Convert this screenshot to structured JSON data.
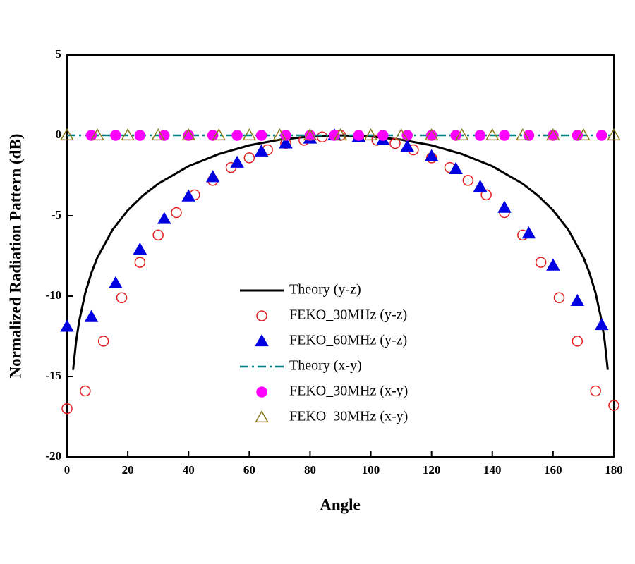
{
  "chart_data": {
    "type": "line",
    "xlabel": "Angle",
    "ylabel": "Normalized Radiation Pattern (dB)",
    "xlim": [
      0,
      180
    ],
    "ylim": [
      -20,
      5
    ],
    "xticks": [
      0,
      20,
      40,
      60,
      80,
      100,
      120,
      140,
      160,
      180
    ],
    "yticks": [
      -20,
      -15,
      -10,
      -5,
      0,
      5
    ],
    "legend": "center",
    "series": [
      {
        "name": "Theory (y-z)",
        "color": "#000000",
        "line": "solid",
        "marker": "none",
        "x": [
          2,
          3,
          4,
          6,
          8,
          10,
          15,
          20,
          25,
          30,
          40,
          50,
          60,
          70,
          80,
          90,
          100,
          110,
          120,
          130,
          140,
          150,
          155,
          160,
          165,
          170,
          172,
          174,
          176,
          177,
          178
        ],
        "values": [
          -14.59,
          -12.81,
          -11.56,
          -9.81,
          -8.57,
          -7.6,
          -5.87,
          -4.66,
          -3.74,
          -3.01,
          -1.92,
          -1.16,
          -0.62,
          -0.27,
          -0.07,
          0,
          -0.07,
          -0.27,
          -0.62,
          -1.16,
          -1.92,
          -3.01,
          -3.74,
          -4.66,
          -5.87,
          -7.6,
          -8.57,
          -9.81,
          -11.56,
          -12.81,
          -14.59
        ]
      },
      {
        "name": "FEKO_30MHz (y-z)",
        "color": "#e02020",
        "line": "none",
        "marker": "circle-open",
        "x": [
          0,
          6,
          12,
          18,
          24,
          30,
          36,
          42,
          48,
          54,
          60,
          66,
          72,
          78,
          84,
          90,
          96,
          102,
          108,
          114,
          120,
          126,
          132,
          138,
          144,
          150,
          156,
          162,
          168,
          174,
          180
        ],
        "values": [
          -17,
          -15.9,
          -12.8,
          -10.1,
          -7.9,
          -6.2,
          -4.8,
          -3.7,
          -2.8,
          -2.0,
          -1.4,
          -0.9,
          -0.5,
          -0.3,
          -0.1,
          0,
          -0.1,
          -0.3,
          -0.5,
          -0.9,
          -1.4,
          -2.0,
          -2.8,
          -3.7,
          -4.8,
          -6.2,
          -7.9,
          -10.1,
          -12.8,
          -15.9,
          -16.8
        ]
      },
      {
        "name": "FEKO_60MHz (y-z)",
        "color": "#0000e0",
        "line": "none",
        "marker": "triangle-filled",
        "x": [
          0,
          8,
          16,
          24,
          32,
          40,
          48,
          56,
          64,
          72,
          80,
          88,
          96,
          104,
          112,
          120,
          128,
          136,
          144,
          152,
          160,
          168,
          176
        ],
        "values": [
          -11.9,
          -11.3,
          -9.2,
          -7.1,
          -5.2,
          -3.8,
          -2.6,
          -1.7,
          -1.0,
          -0.5,
          -0.2,
          0,
          -0.1,
          -0.3,
          -0.7,
          -1.3,
          -2.1,
          -3.2,
          -4.5,
          -6.1,
          -8.1,
          -10.3,
          -11.8
        ]
      },
      {
        "name": "Theory (x-y)",
        "color": "#008080",
        "line": "dashdot",
        "marker": "none",
        "x": [
          0,
          180
        ],
        "values": [
          0,
          0
        ]
      },
      {
        "name": "FEKO_30MHz (x-y)",
        "color": "#ff00ff",
        "line": "none",
        "marker": "circle-filled",
        "x": [
          8,
          16,
          24,
          32,
          40,
          48,
          56,
          64,
          72,
          80,
          88,
          96,
          104,
          112,
          120,
          128,
          136,
          144,
          152,
          160,
          168,
          176
        ],
        "values": [
          0,
          0,
          0,
          0,
          0,
          0,
          0,
          0,
          0,
          0,
          0,
          0,
          0,
          0,
          0,
          0,
          0,
          0,
          0,
          0,
          0,
          0
        ]
      },
      {
        "name": "FEKO_30MHz (x-y)",
        "color": "#8b7a1a",
        "line": "none",
        "marker": "triangle-open",
        "x": [
          0,
          10,
          20,
          30,
          40,
          50,
          60,
          70,
          80,
          90,
          100,
          110,
          120,
          130,
          140,
          150,
          160,
          170,
          180
        ],
        "values": [
          0,
          0,
          0,
          0,
          0,
          0,
          0,
          0,
          0,
          0,
          0,
          0,
          0,
          0,
          0,
          0,
          0,
          0,
          0
        ]
      }
    ]
  }
}
